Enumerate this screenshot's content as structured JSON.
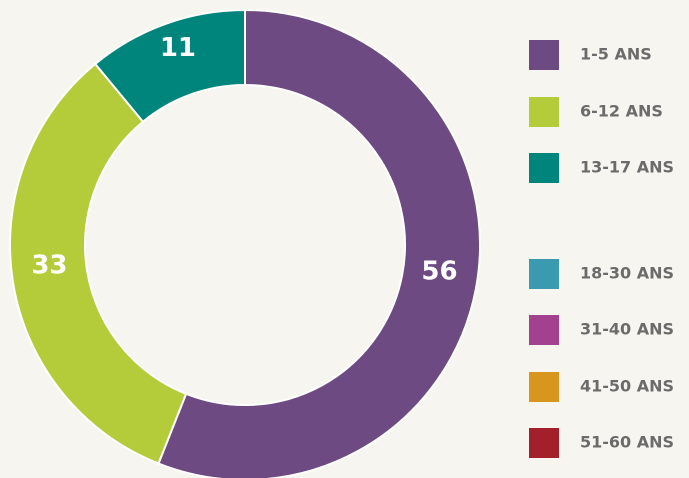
{
  "chart_data": {
    "type": "donut",
    "categories": [
      "1-5 ANS",
      "6-12 ANS",
      "13-17 ANS",
      "18-30 ANS",
      "31-40 ANS",
      "41-50 ANS",
      "51-60 ANS"
    ],
    "values": [
      56,
      33,
      11,
      null,
      null,
      null,
      null
    ],
    "colors": [
      "#6e4a82",
      "#b5cc3a",
      "#00857c",
      "#3a9bb0",
      "#a4418e",
      "#d8961e",
      "#a3202b"
    ]
  }
}
